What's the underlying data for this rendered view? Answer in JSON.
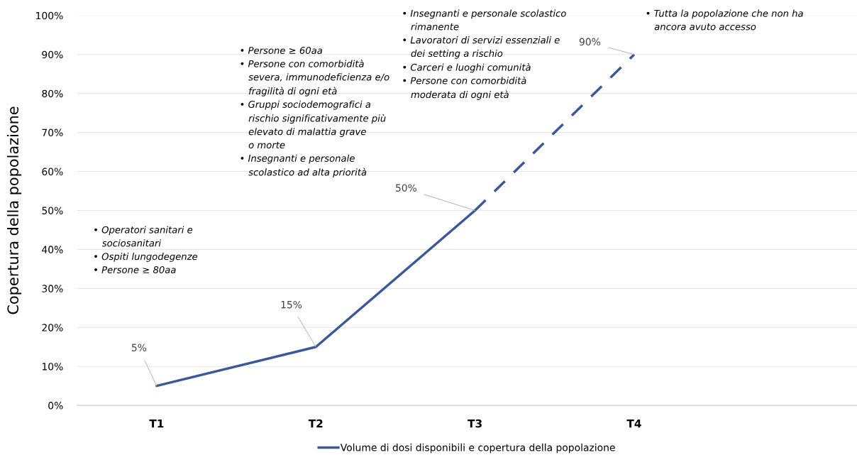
{
  "chart_data": {
    "type": "line",
    "ylabel": "Copertura della popolazione",
    "categories": [
      "T1",
      "T2",
      "T3",
      "T4",
      null
    ],
    "series": [
      {
        "name": "Volume di dosi disponibili e copertura della popolazione",
        "color": "#3b5998",
        "values": [
          5,
          15,
          50,
          null,
          null
        ],
        "value_labels": [
          "5%",
          "15%",
          "50%",
          null,
          null
        ],
        "line_style": "solid"
      },
      {
        "color": "#3b5998",
        "values": [
          null,
          null,
          50,
          90,
          null
        ],
        "value_labels": [
          null,
          null,
          null,
          "90%",
          null
        ],
        "line_style": "dashed"
      }
    ],
    "ylim": [
      0,
      100
    ],
    "yticks": [
      {
        "value": 0,
        "label": "0%"
      },
      {
        "value": 10,
        "label": "10%"
      },
      {
        "value": 20,
        "label": "20%"
      },
      {
        "value": 30,
        "label": "30%"
      },
      {
        "value": 40,
        "label": "40%"
      },
      {
        "value": 50,
        "label": "50%"
      },
      {
        "value": 60,
        "label": "60%"
      },
      {
        "value": 70,
        "label": "70%"
      },
      {
        "value": 80,
        "label": "80%"
      },
      {
        "value": 90,
        "label": "90%"
      },
      {
        "value": 100,
        "label": "100%"
      }
    ],
    "grid": "y",
    "legend": "bottom",
    "marker": "none",
    "annotations": [
      "• Operatori sanitari e\n   sociosanitari\n• Ospiti lungodegenze\n• Persone ≥ 80aa",
      "• Persone ≥ 60aa\n• Persone con comorbidità\n   severa, immunodeficienza e/o\n   fragilità di ogni età\n• Gruppi sociodemografici a\n   rischio significativamente più\n   elevato di malattia grave\n   o morte\n• Insegnanti e personale\n   scolastico ad alta priorità",
      "• Insegnanti e personale scolastico\n   rimanente\n• Lavoratori di servizi essenziali e\n   dei setting a rischio\n• Carceri e luoghi comunità\n• Persone con comorbidità\n   moderata di ogni età",
      "• Tutta la popolazione che non ha\n   ancora avuto accesso"
    ]
  }
}
